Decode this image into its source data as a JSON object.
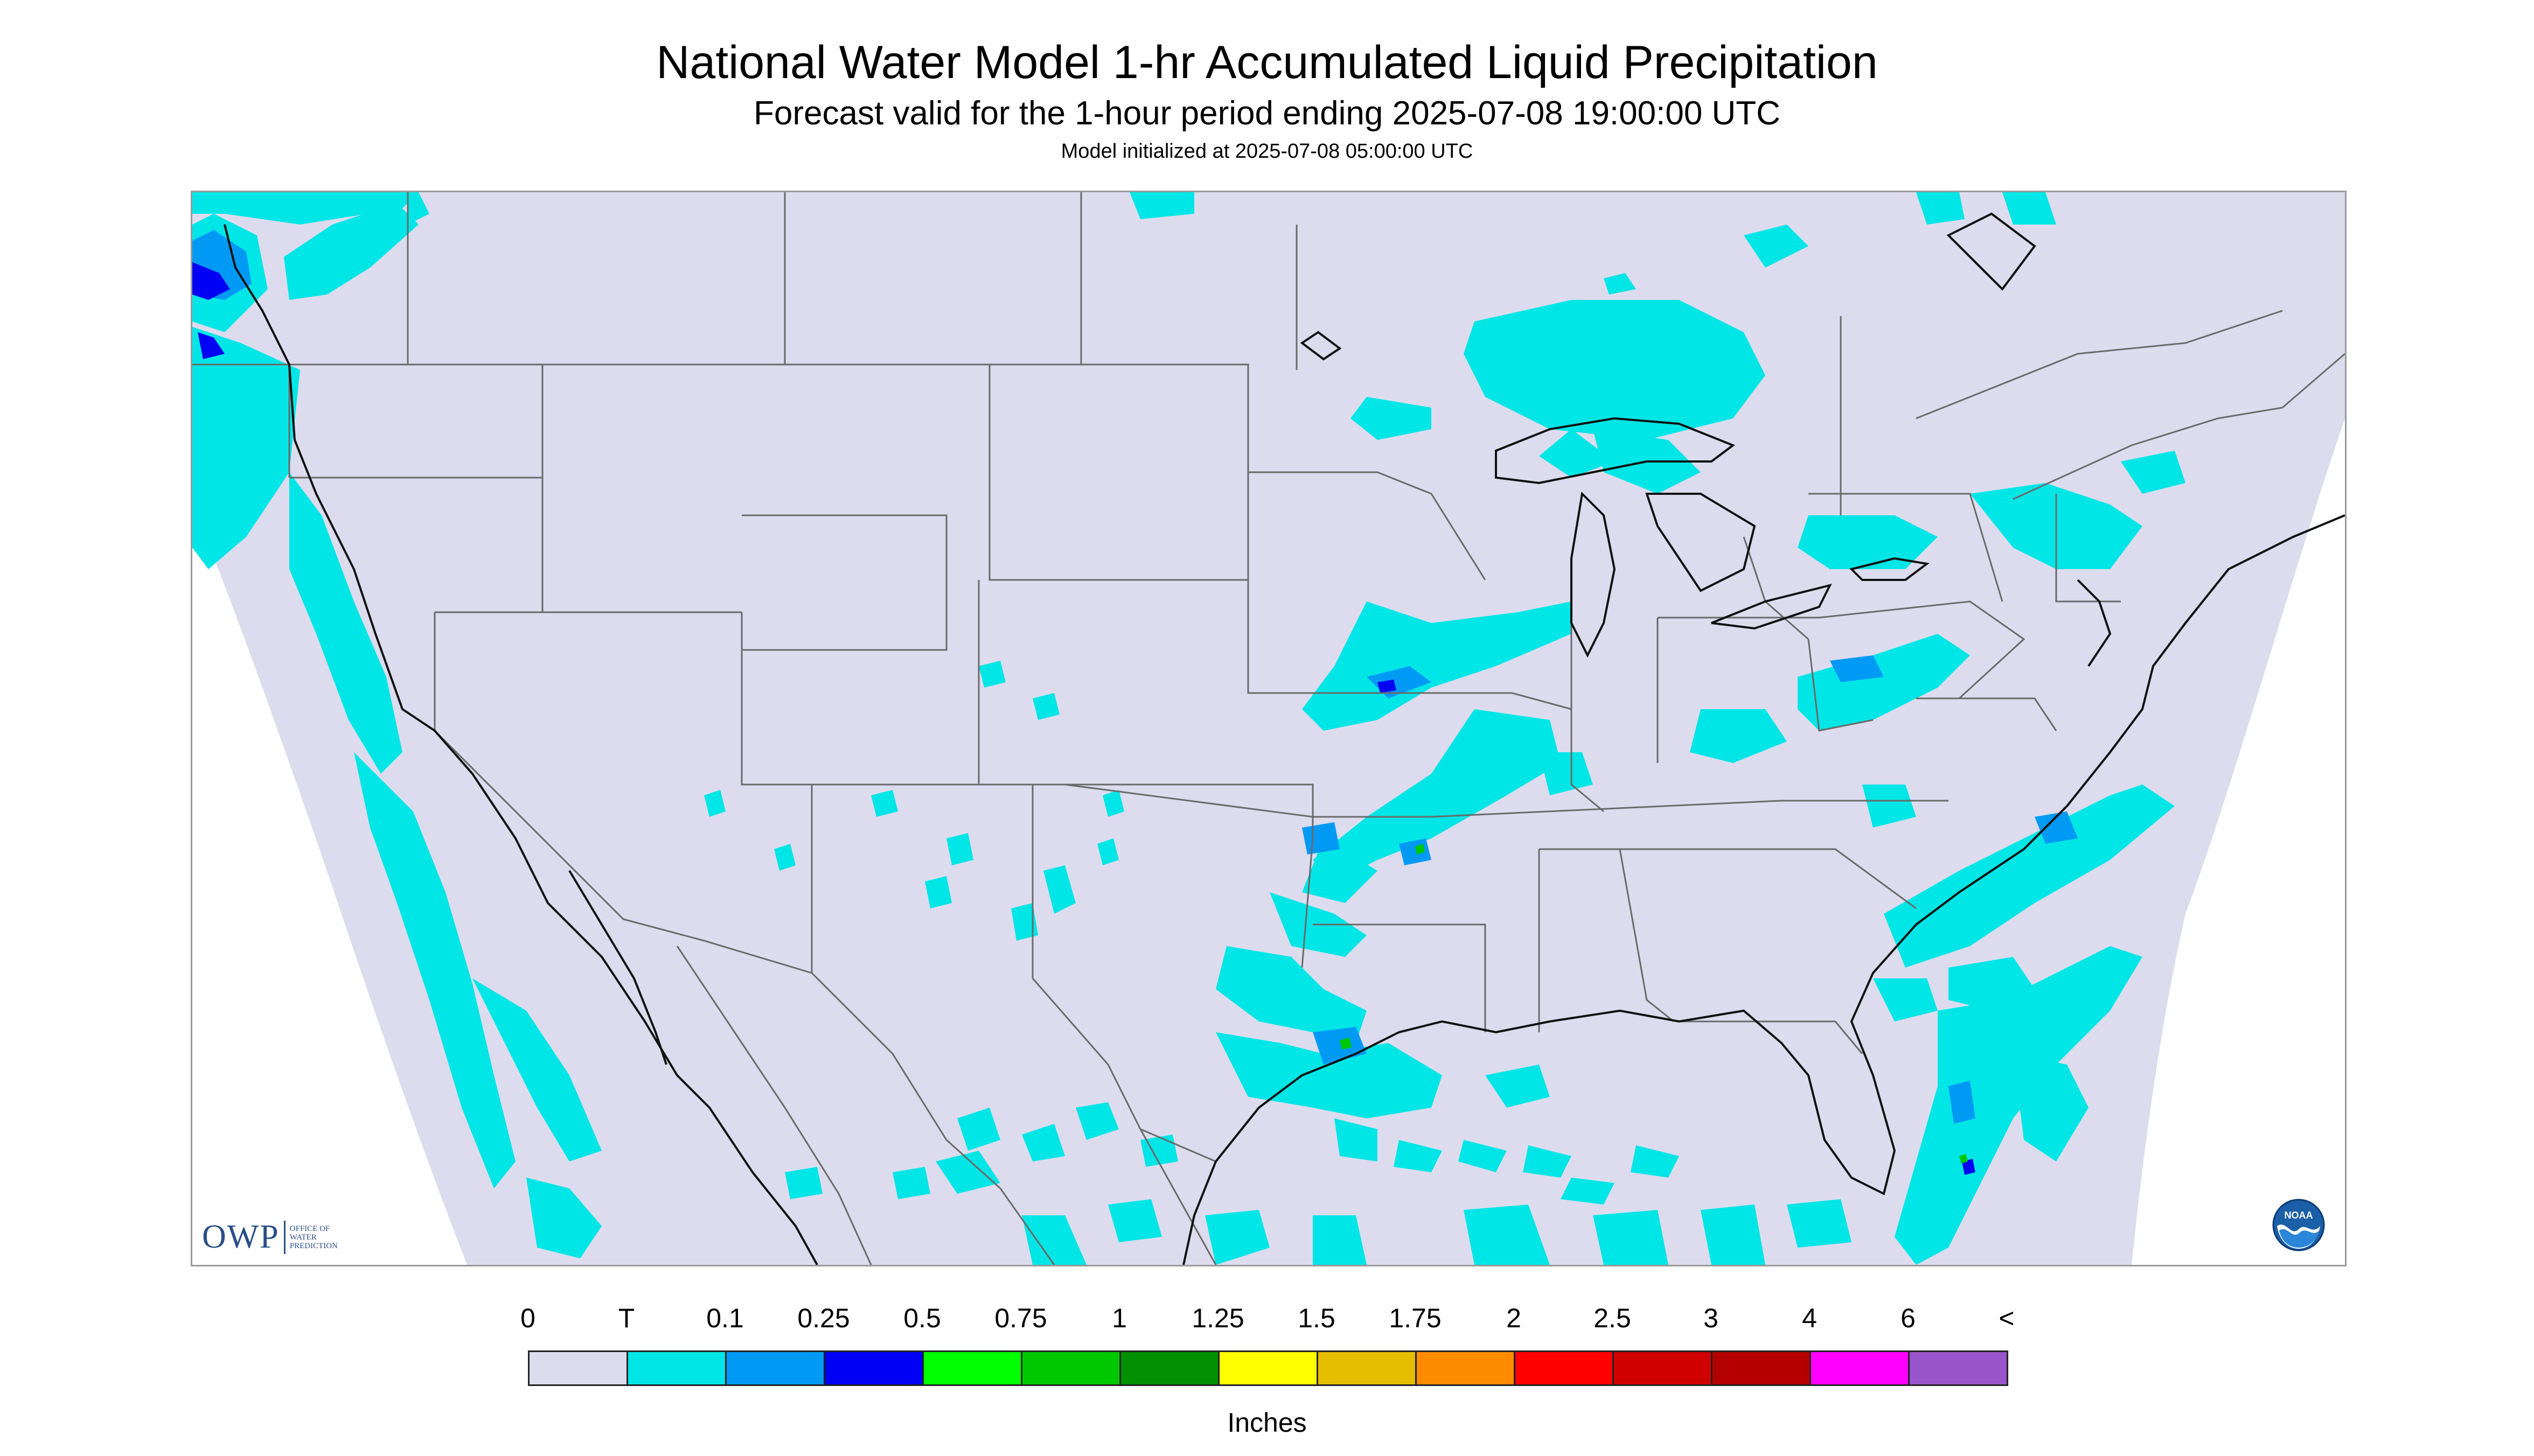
{
  "header": {
    "title": "National Water Model 1-hr Accumulated Liquid Precipitation",
    "subtitle": "Forecast valid for the 1-hour period ending 2025-07-08 19:00:00 UTC",
    "init": "Model initialized at 2025-07-08 05:00:00 UTC"
  },
  "map": {
    "background_color": "#dcdcee",
    "outside_color": "#ffffff",
    "border_color": "#6a6a6a",
    "coast_color": "#111111"
  },
  "logo": {
    "letters": "OWP",
    "words": [
      "OFFICE OF",
      "WATER",
      "PREDICTION"
    ],
    "noaa_text": "NOAA"
  },
  "legend": {
    "labels": [
      "0",
      "T",
      "0.1",
      "0.25",
      "0.5",
      "0.75",
      "1",
      "1.25",
      "1.5",
      "1.75",
      "2",
      "2.5",
      "3",
      "4",
      "6",
      "<"
    ],
    "colors": [
      "#dcdcee",
      "#00e6e6",
      "#009af5",
      "#0000f5",
      "#00ff00",
      "#00c800",
      "#009000",
      "#ffff00",
      "#e6be00",
      "#ff8c00",
      "#ff0000",
      "#d00000",
      "#b40000",
      "#ff00ff",
      "#9955cc"
    ],
    "units": "Inches"
  }
}
